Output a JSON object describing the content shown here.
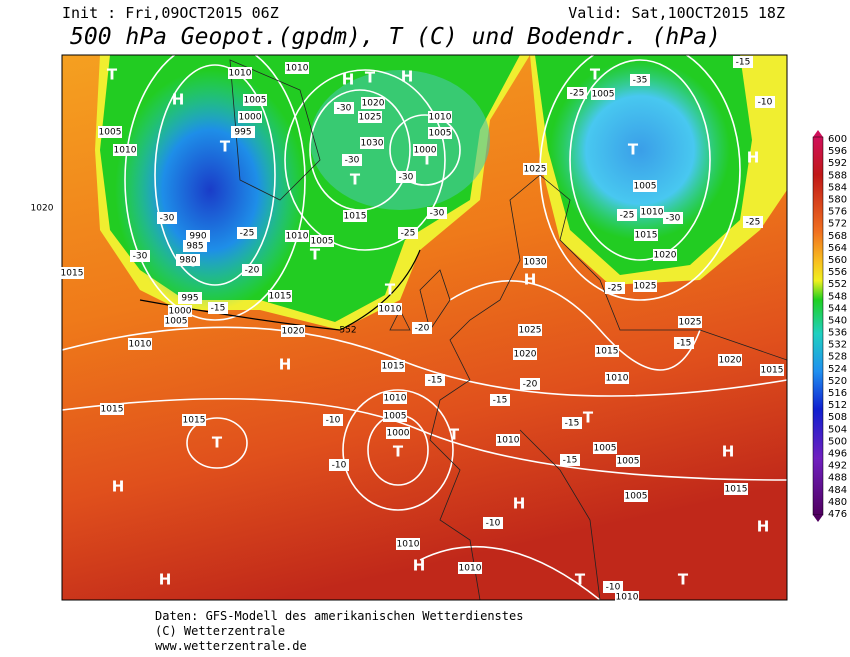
{
  "header": {
    "init": "Init : Fri,09OCT2015 06Z",
    "valid": "Valid: Sat,10OCT2015 18Z",
    "title": "500 hPa Geopot.(gpdm), T (C) und Bodendr. (hPa)"
  },
  "colorbar": {
    "labels": [
      600,
      596,
      592,
      588,
      584,
      580,
      576,
      572,
      568,
      564,
      560,
      556,
      552,
      548,
      544,
      540,
      536,
      532,
      528,
      524,
      520,
      516,
      512,
      508,
      504,
      500,
      496,
      492,
      488,
      484,
      480,
      476
    ]
  },
  "map": {
    "markers": [
      "H",
      "H",
      "H",
      "H",
      "H",
      "H",
      "H",
      "H",
      "H",
      "H",
      "H",
      "H",
      "T",
      "T",
      "T",
      "T",
      "T",
      "T",
      "T",
      "T",
      "T",
      "T",
      "T",
      "T",
      "T",
      "T",
      "T",
      "T"
    ],
    "isobars": [
      "1010",
      "1005",
      "1000",
      "995",
      "1005",
      "1010",
      "1020",
      "1025",
      "1030",
      "1000",
      "1010",
      "1005",
      "1015",
      "1010",
      "1005",
      "990",
      "985",
      "980",
      "995",
      "1000",
      "1005",
      "1015",
      "1010",
      "1020",
      "1010",
      "1015",
      "1015",
      "1015",
      "1010",
      "1005",
      "1000",
      "1025",
      "1030",
      "1025",
      "1020",
      "1015",
      "1010",
      "1010",
      "1005",
      "1005",
      "1005",
      "1020",
      "1015",
      "1025",
      "1025",
      "1020",
      "1015",
      "1010",
      "1005",
      "1005",
      "1010",
      "1010",
      "1010",
      "1015",
      "1015",
      "1020",
      "1010"
    ],
    "temps": [
      "-35",
      "-25",
      "-30",
      "-30",
      "-30",
      "-30",
      "-25",
      "-25",
      "-20",
      "-30",
      "-30",
      "-15",
      "-20",
      "-15",
      "-20",
      "-15",
      "-15",
      "-15",
      "-10",
      "-10",
      "-10",
      "-10",
      "-15",
      "-25",
      "-25",
      "-30",
      "-25",
      "-10",
      "-15"
    ],
    "contour": "552"
  },
  "footer": {
    "lines": [
      "Daten: GFS-Modell des amerikanischen Wetterdienstes",
      "(C) Wetterzentrale",
      "www.wetterzentrale.de"
    ]
  }
}
